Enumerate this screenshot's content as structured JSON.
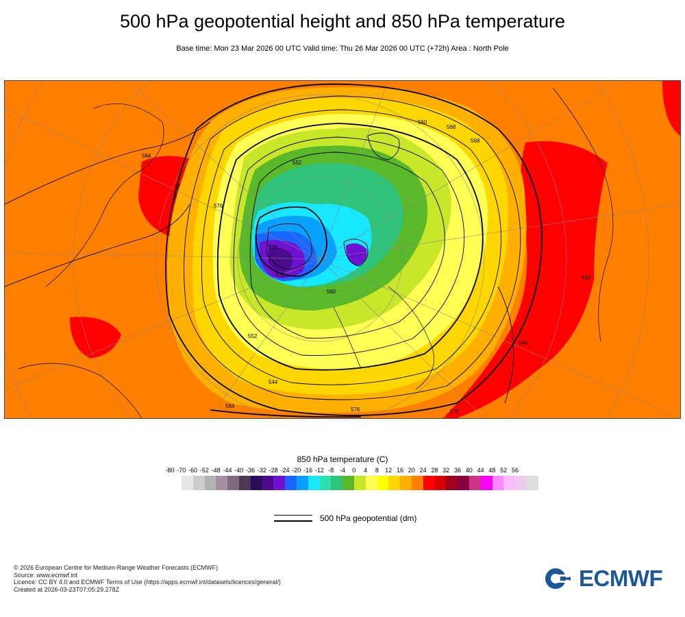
{
  "header": {
    "title": "500 hPa geopotential height and 850 hPa temperature",
    "subtitle": "Base time: Mon 23 Mar 2026 00 UTC Valid time: Thu 26 Mar 2026 00 UTC (+72h) Area : North Pole"
  },
  "map": {
    "contour_labels": [
      "584",
      "576",
      "560",
      "568",
      "552",
      "536",
      "520",
      "576",
      "584",
      "560",
      "552",
      "544",
      "568",
      "576",
      "584",
      "592"
    ]
  },
  "colorbar": {
    "title": "850 hPa temperature (C)",
    "ticks": [
      "-80",
      "-70",
      "-60",
      "-52",
      "-48",
      "-44",
      "-40",
      "-36",
      "-32",
      "-28",
      "-24",
      "-20",
      "-16",
      "-12",
      "-8",
      "-4",
      "0",
      "4",
      "8",
      "12",
      "16",
      "20",
      "24",
      "28",
      "32",
      "36",
      "40",
      "44",
      "48",
      "52",
      "56"
    ],
    "colors": [
      "#e6e6e6",
      "#cccccc",
      "#b3b3b3",
      "#a48fa4",
      "#7f6a80",
      "#4a3a55",
      "#2a0c5a",
      "#4a0c8a",
      "#7010d0",
      "#1a66ff",
      "#0aa0ff",
      "#19e6ff",
      "#2de0b0",
      "#2fc47a",
      "#5ab82a",
      "#c8e62a",
      "#ffff55",
      "#ffff00",
      "#ffd700",
      "#ffb000",
      "#ff7f00",
      "#ff0000",
      "#d80000",
      "#a00020",
      "#880040",
      "#cc3388",
      "#ff00ff",
      "#ff88ff",
      "#ffbbff",
      "#eeccee",
      "#dddddd"
    ]
  },
  "legend": {
    "label": "500 hPa geopotential (dm)"
  },
  "footer": {
    "lines": [
      "© 2026 European Centre for Medium-Range Weather Forecasts (ECMWF)",
      "Source: www.ecmwf.int",
      "Licence: CC BY 4.0 and ECMWF Terms of Use (https://apps.ecmwf.int/datasets/licences/general/)",
      "Created at 2026-03-23T07:05:29.278Z"
    ]
  },
  "logo": {
    "text": "ECMWF",
    "color": "#1c5796"
  }
}
